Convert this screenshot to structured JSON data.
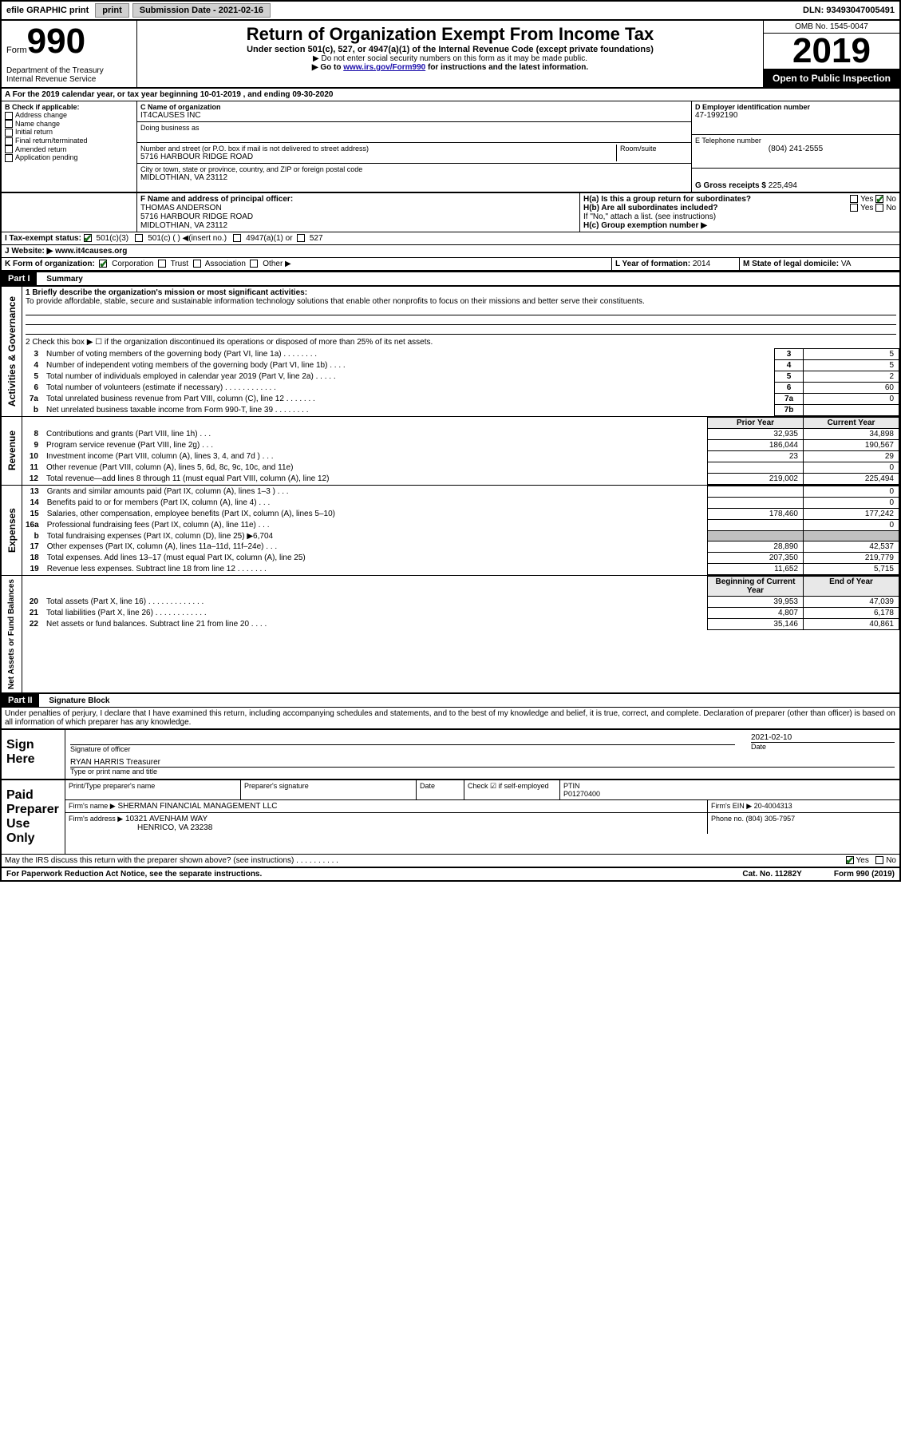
{
  "topbar": {
    "efile": "efile GRAPHIC print",
    "subdate_label": "Submission Date - ",
    "subdate": "2021-02-16",
    "dln_label": "DLN: ",
    "dln": "93493047005491"
  },
  "header": {
    "form_label": "Form",
    "form_no": "990",
    "dept": "Department of the Treasury\nInternal Revenue Service",
    "title": "Return of Organization Exempt From Income Tax",
    "sub1": "Under section 501(c), 527, or 4947(a)(1) of the Internal Revenue Code (except private foundations)",
    "sub2": "▶ Do not enter social security numbers on this form as it may be made public.",
    "sub3_pre": "▶ Go to ",
    "sub3_link": "www.irs.gov/Form990",
    "sub3_post": " for instructions and the latest information.",
    "omb": "OMB No. 1545-0047",
    "year": "2019",
    "inspect": "Open to Public Inspection"
  },
  "lineA": "A For the 2019 calendar year, or tax year beginning 10-01-2019    , and ending 09-30-2020",
  "colB": {
    "head": "B Check if applicable:",
    "items": [
      "Address change",
      "Name change",
      "Initial return",
      "Final return/terminated",
      "Amended return",
      "Application pending"
    ]
  },
  "colC": {
    "name_label": "C Name of organization",
    "name": "IT4CAUSES INC",
    "dba_label": "Doing business as",
    "addr_label": "Number and street (or P.O. box if mail is not delivered to street address)",
    "room_label": "Room/suite",
    "addr": "5716 HARBOUR RIDGE ROAD",
    "city_label": "City or town, state or province, country, and ZIP or foreign postal code",
    "city": "MIDLOTHIAN, VA  23112"
  },
  "colD": {
    "ein_label": "D Employer identification number",
    "ein": "47-1992190",
    "tel_label": "E Telephone number",
    "tel": "(804) 241-2555",
    "gross_label": "G Gross receipts $ ",
    "gross": "225,494"
  },
  "F": {
    "label": "F  Name and address of principal officer:",
    "name": "THOMAS ANDERSON",
    "addr1": "5716 HARBOUR RIDGE ROAD",
    "addr2": "MIDLOTHIAN, VA  23112"
  },
  "H": {
    "a": "H(a)  Is this a group return for subordinates?",
    "a_yes": "Yes",
    "a_no": "No",
    "b": "H(b)  Are all subordinates included?",
    "b_yes": "Yes",
    "b_no": "No",
    "b_note": "If \"No,\" attach a list. (see instructions)",
    "c": "H(c)  Group exemption number ▶"
  },
  "I": {
    "label": "I    Tax-exempt status:",
    "o1": "501(c)(3)",
    "o2": "501(c) (  ) ◀(insert no.)",
    "o3": "4947(a)(1) or",
    "o4": "527"
  },
  "J": {
    "label": "J   Website: ▶",
    "val": "  www.it4causes.org"
  },
  "K": {
    "label": "K Form of organization:",
    "o1": "Corporation",
    "o2": "Trust",
    "o3": "Association",
    "o4": "Other ▶"
  },
  "L": {
    "label": "L Year of formation: ",
    "val": "2014"
  },
  "M": {
    "label": "M State of legal domicile: ",
    "val": "VA"
  },
  "partI": {
    "head": "Part I",
    "title": "Summary"
  },
  "activities_label": "Activities & Governance",
  "revenue_label": "Revenue",
  "expenses_label": "Expenses",
  "netassets_label": "Net Assets or Fund Balances",
  "line1_label": "1   Briefly describe the organization's mission or most significant activities:",
  "line1_text": "To provide affordable, stable, secure and sustainable information technology solutions that enable other nonprofits to focus on their missions and better serve their constituents.",
  "line2": "2   Check this box ▶ ☐ if the organization discontinued its operations or disposed of more than 25% of its net assets.",
  "lines_gov": [
    {
      "n": "3",
      "d": "Number of voting members of the governing body (Part VI, line 1a)   .    .    .    .    .    .    .    .",
      "b": "3",
      "v": "5"
    },
    {
      "n": "4",
      "d": "Number of independent voting members of the governing body (Part VI, line 1b)   .    .    .    .",
      "b": "4",
      "v": "5"
    },
    {
      "n": "5",
      "d": "Total number of individuals employed in calendar year 2019 (Part V, line 2a)   .    .    .    .    .",
      "b": "5",
      "v": "2"
    },
    {
      "n": "6",
      "d": "Total number of volunteers (estimate if necessary)    .    .    .    .    .    .    .    .    .    .    .    .",
      "b": "6",
      "v": "60"
    },
    {
      "n": "7a",
      "d": "Total unrelated business revenue from Part VIII, column (C), line 12   .    .    .    .    .    .    .",
      "b": "7a",
      "v": "0"
    },
    {
      "n": "b",
      "d": "Net unrelated business taxable income from Form 990-T, line 39    .    .    .    .    .    .    .    .",
      "b": "7b",
      "v": " "
    }
  ],
  "py": "Prior Year",
  "cy": "Current Year",
  "lines_rev": [
    {
      "n": "8",
      "d": "Contributions and grants (Part VIII, line 1h)    .    .    .",
      "p": "32,935",
      "c": "34,898"
    },
    {
      "n": "9",
      "d": "Program service revenue (Part VIII, line 2g)    .    .    .",
      "p": "186,044",
      "c": "190,567"
    },
    {
      "n": "10",
      "d": "Investment income (Part VIII, column (A), lines 3, 4, and 7d )    .    .    .",
      "p": "23",
      "c": "29"
    },
    {
      "n": "11",
      "d": "Other revenue (Part VIII, column (A), lines 5, 6d, 8c, 9c, 10c, and 11e)",
      "p": " ",
      "c": "0"
    },
    {
      "n": "12",
      "d": "Total revenue—add lines 8 through 11 (must equal Part VIII, column (A), line 12)",
      "p": "219,002",
      "c": "225,494"
    }
  ],
  "lines_exp": [
    {
      "n": "13",
      "d": "Grants and similar amounts paid (Part IX, column (A), lines 1–3 )   .    .    .",
      "p": " ",
      "c": "0"
    },
    {
      "n": "14",
      "d": "Benefits paid to or for members (Part IX, column (A), line 4)    .    .    .",
      "p": " ",
      "c": "0"
    },
    {
      "n": "15",
      "d": "Salaries, other compensation, employee benefits (Part IX, column (A), lines 5–10)",
      "p": "178,460",
      "c": "177,242"
    },
    {
      "n": "16a",
      "d": "Professional fundraising fees (Part IX, column (A), line 11e)    .    .    .",
      "p": " ",
      "c": "0"
    },
    {
      "n": "b",
      "d": "Total fundraising expenses (Part IX, column (D), line 25) ▶6,704",
      "p": "shade",
      "c": "shade"
    },
    {
      "n": "17",
      "d": "Other expenses (Part IX, column (A), lines 11a–11d, 11f–24e)    .    .    .",
      "p": "28,890",
      "c": "42,537"
    },
    {
      "n": "18",
      "d": "Total expenses. Add lines 13–17 (must equal Part IX, column (A), line 25)",
      "p": "207,350",
      "c": "219,779"
    },
    {
      "n": "19",
      "d": "Revenue less expenses. Subtract line 18 from line 12 .    .    .    .    .    .    .",
      "p": "11,652",
      "c": "5,715"
    }
  ],
  "bcy": "Beginning of Current Year",
  "ecy": "End of Year",
  "lines_net": [
    {
      "n": "20",
      "d": "Total assets (Part X, line 16)  .    .    .    .    .    .    .    .    .    .    .    .    .",
      "p": "39,953",
      "c": "47,039"
    },
    {
      "n": "21",
      "d": "Total liabilities (Part X, line 26)  .    .    .    .    .    .    .    .    .    .    .    .",
      "p": "4,807",
      "c": "6,178"
    },
    {
      "n": "22",
      "d": "Net assets or fund balances. Subtract line 21 from line 20   .    .    .    .",
      "p": "35,146",
      "c": "40,861"
    }
  ],
  "partII": {
    "head": "Part II",
    "title": "Signature Block"
  },
  "sig_decl": "Under penalties of perjury, I declare that I have examined this return, including accompanying schedules and statements, and to the best of my knowledge and belief, it is true, correct, and complete. Declaration of preparer (other than officer) is based on all information of which preparer has any knowledge.",
  "sign": {
    "label": "Sign Here",
    "sigoff": "Signature of officer",
    "date": "2021-02-10",
    "date_l": "Date",
    "name": "RYAN HARRIS  Treasurer",
    "name_l": "Type or print name and title"
  },
  "paid": {
    "label": "Paid Preparer Use Only",
    "h1": "Print/Type preparer's name",
    "h2": "Preparer's signature",
    "h3": "Date",
    "h4": "Check ☑ if self-employed",
    "h5": "PTIN",
    "ptin": "P01270400",
    "firm_l": "Firm's name    ▶",
    "firm": "SHERMAN FINANCIAL MANAGEMENT LLC",
    "ein_l": "Firm's EIN ▶ ",
    "ein": "20-4004313",
    "addr_l": "Firm's address ▶",
    "addr1": "10321 AVENHAM WAY",
    "addr2": "HENRICO, VA  23238",
    "ph_l": "Phone no. ",
    "ph": "(804) 305-7957"
  },
  "discuss": "May the IRS discuss this return with the preparer shown above? (see instructions)    .    .    .    .    .    .    .    .    .    .",
  "discuss_yes": "Yes",
  "discuss_no": "No",
  "footer": {
    "a": "For Paperwork Reduction Act Notice, see the separate instructions.",
    "b": "Cat. No. 11282Y",
    "c": "Form 990 (2019)"
  }
}
